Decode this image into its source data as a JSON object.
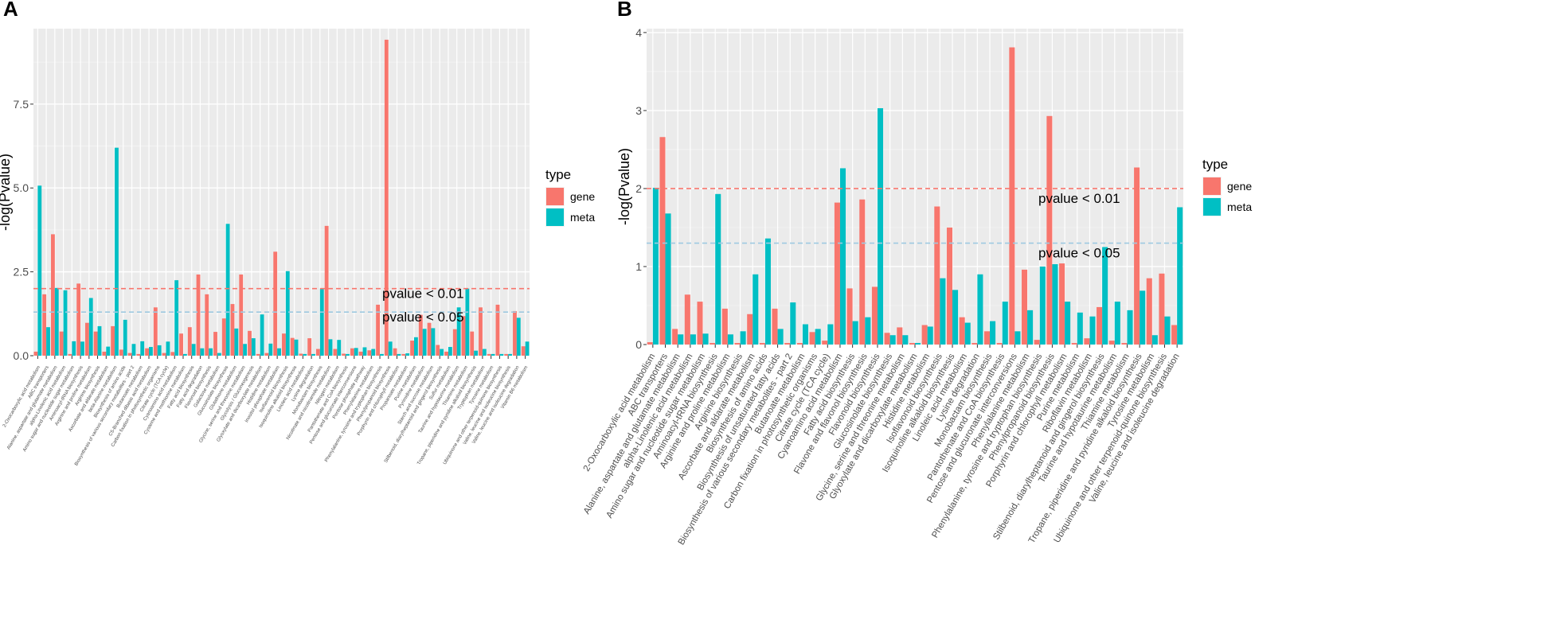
{
  "chart_data": [
    {
      "panel": "A",
      "type": "bar",
      "ylabel": "-log(Pvalue)",
      "xlabel": "",
      "ylim": [
        0,
        9.75
      ],
      "yticks": [
        "0.0",
        "2.5",
        "5.0",
        "7.5"
      ],
      "ytick_values": [
        0,
        2.5,
        5,
        7.5
      ],
      "legend": {
        "title": "type",
        "position": "right",
        "entries": [
          "gene",
          "meta"
        ]
      },
      "thresholds": [
        {
          "label": "pvalue < 0.01",
          "value": 2.0,
          "color": "#F8766D"
        },
        {
          "label": "pvalue < 0.05",
          "value": 1.3,
          "color": "#9ECAE1"
        }
      ],
      "categories": [
        "2-Oxocarboxylic acid metabolism",
        "ABC transporters",
        "Alanine, aspartate and glutamate metabolism",
        "alpha-Linolenic acid metabolism",
        "Amino sugar and nucleotide sugar metabolism",
        "Aminoacyl-tRNA biosynthesis",
        "Arginine and proline metabolism",
        "Arginine biosynthesis",
        "Ascorbate and aldarate metabolism",
        "beta-Alanine metabolism",
        "Biosynthesis of amino acids",
        "Biosynthesis of various secondary metabolites - part 2",
        "Butanoate metabolism",
        "C5-Branched dibasic acid metabolism",
        "Carbon fixation in photosynthetic organisms",
        "Citrate cycle (TCA cycle)",
        "Cyanoamino acid metabolism",
        "Cysteine and methionine metabolism",
        "Fatty acid biosynthesis",
        "Fatty acid degradation",
        "Flavonoid biosynthesis",
        "Galactose metabolism",
        "Glucosinolate biosynthesis",
        "Glutathione metabolism",
        "Glycine, serine and threonine metabolism",
        "Glycolysis / Gluconeogenesis",
        "Glyoxylate and dicarboxylate metabolism",
        "Histidine metabolism",
        "Inositol phosphate metabolism",
        "Isoflavonoid biosynthesis",
        "Isoquinoline alkaloid biosynthesis",
        "Linoleic acid metabolism",
        "Lysine degradation",
        "Monobactam biosynthesis",
        "Nicotinate and nicotinamide metabolism",
        "Nitrogen metabolism",
        "Pantothenate and CoA biosynthesis",
        "Pentose and glucuronate interconversions",
        "Pentose phosphate pathway",
        "Phenylalanine metabolism",
        "Phenylalanine, tyrosine and tryptophan biosynthesis",
        "Phenylpropanoid biosynthesis",
        "Porphyrin and chlorophyll metabolism",
        "Propanoate metabolism",
        "Purine metabolism",
        "Pyrimidine metabolism",
        "Starch and sucrose metabolism",
        "Stilbenoid, diarylheptanoid and gingerol biosynthesis",
        "Sulfur metabolism",
        "Taurine and hypotaurine metabolism",
        "Thiamine metabolism",
        "Tropane, piperidine and pyridine alkaloid biosynthesis",
        "Tryptophan metabolism",
        "Tyrosine metabolism",
        "Ubiquinone and other terpenoid-quinone biosynthesis",
        "Valine, leucine and isoleucine biosynthesis",
        "Valine, leucine and isoleucine degradation",
        "Vitamin B6 metabolism"
      ],
      "series": [
        {
          "name": "gene",
          "color": "#F8766D",
          "values": [
            0.12,
            1.83,
            3.62,
            0.72,
            0.05,
            2.15,
            0.98,
            0.72,
            0.12,
            0.88,
            0.18,
            0.08,
            0.05,
            0.22,
            1.44,
            0.08,
            0.11,
            0.66,
            0.85,
            2.42,
            1.83,
            0.71,
            1.11,
            1.54,
            2.42,
            0.74,
            0.05,
            0.08,
            3.1,
            0.66,
            0.53,
            0.06,
            0.52,
            0.2,
            3.87,
            0.2,
            0.06,
            0.22,
            0.12,
            0.16,
            1.52,
            9.42,
            0.22,
            0.05,
            0.45,
            1.22,
            0.98,
            0.32,
            0.12,
            0.79,
            1.18,
            0.72,
            1.44,
            0.05,
            1.52,
            0.05,
            1.33,
            0.28
          ]
        },
        {
          "name": "meta",
          "color": "#00BFC4",
          "values": [
            5.07,
            0.85,
            2.02,
            1.95,
            0.43,
            0.42,
            1.72,
            0.88,
            0.27,
            6.2,
            1.07,
            0.35,
            0.43,
            0.26,
            0.31,
            0.42,
            2.25,
            0.05,
            0.35,
            0.22,
            0.22,
            0.08,
            3.93,
            0.81,
            0.35,
            0.52,
            1.23,
            0.36,
            0.22,
            2.52,
            0.48,
            0.05,
            0.05,
            2.0,
            0.49,
            0.47,
            0.05,
            0.23,
            0.25,
            0.2,
            0.05,
            0.42,
            0.05,
            0.07,
            0.55,
            0.8,
            0.82,
            0.2,
            0.26,
            1.44,
            2.0,
            0.15,
            0.2,
            0.05,
            0.05,
            0.05,
            1.13,
            0.42
          ]
        }
      ]
    },
    {
      "panel": "B",
      "type": "bar",
      "ylabel": "-log(Pvalue)",
      "xlabel": "",
      "ylim": [
        0,
        4.05
      ],
      "yticks": [
        "0",
        "1",
        "2",
        "3",
        "4"
      ],
      "ytick_values": [
        0,
        1,
        2,
        3,
        4
      ],
      "legend": {
        "title": "type",
        "position": "right",
        "entries": [
          "gene",
          "meta"
        ]
      },
      "thresholds": [
        {
          "label": "pvalue < 0.01",
          "value": 2.0,
          "color": "#F8766D"
        },
        {
          "label": "pvalue < 0.05",
          "value": 1.3,
          "color": "#9ECAE1"
        }
      ],
      "categories": [
        "2-Oxocarboxylic acid metabolism",
        "ABC transporters",
        "Alanine, aspartate and glutamate metabolism",
        "alpha-Linolenic acid metabolism",
        "Amino sugar and nucleotide sugar metabolism",
        "Aminoacyl-tRNA biosynthesis",
        "Arginine and proline metabolism",
        "Arginine biosynthesis",
        "Ascorbate and aldarate metabolism",
        "Biosynthesis of amino acids",
        "Biosynthesis of unsaturated fatty acids",
        "Biosynthesis of various secondary metabolites - part 2",
        "Butanoate metabolism",
        "Carbon fixation in photosynthetic organisms",
        "Citrate cycle (TCA cycle)",
        "Cyanoamino acid metabolism",
        "Fatty acid biosynthesis",
        "Flavone and flavonol biosynthesis",
        "Flavonoid biosynthesis",
        "Glucosinolate biosynthesis",
        "Glycine, serine and threonine metabolism",
        "Glyoxylate and dicarboxylate metabolism",
        "Histidine metabolism",
        "Isoflavonoid biosynthesis",
        "Isoquinoline alkaloid biosynthesis",
        "Linoleic acid metabolism",
        "Lysine degradation",
        "Monobactam biosynthesis",
        "Pantothenate and CoA biosynthesis",
        "Pentose and glucuronate interconversions",
        "Phenylalanine metabolism",
        "Phenylalanine, tyrosine and tryptophan biosynthesis",
        "Phenylpropanoid biosynthesis",
        "Porphyrin and chlorophyll metabolism",
        "Purine metabolism",
        "Riboflavin metabolism",
        "Stilbenoid, diarylheptanoid and gingerol biosynthesis",
        "Taurine and hypotaurine metabolism",
        "Thiamine metabolism",
        "Tropane, piperidine and pyridine alkaloid biosynthesis",
        "Tyrosine metabolism",
        "Ubiquinone and other terpenoid-quinone biosynthesis",
        "Valine, leucine and isoleucine degradation"
      ],
      "series": [
        {
          "name": "gene",
          "color": "#F8766D",
          "values": [
            0.03,
            2.66,
            0.2,
            0.64,
            0.55,
            0.02,
            0.46,
            0.02,
            0.39,
            0.02,
            0.46,
            0.02,
            0.02,
            0.16,
            0.05,
            1.82,
            0.72,
            1.86,
            0.74,
            0.15,
            0.22,
            0.02,
            0.25,
            1.77,
            1.5,
            0.35,
            0.02,
            0.17,
            0.02,
            3.81,
            0.96,
            0.06,
            2.93,
            1.04,
            0.02,
            0.08,
            0.48,
            0.05,
            0.02,
            2.27,
            0.85,
            0.91,
            0.25
          ]
        },
        {
          "name": "meta",
          "color": "#00BFC4",
          "values": [
            2.01,
            1.68,
            0.13,
            0.13,
            0.14,
            1.93,
            0.13,
            0.17,
            0.9,
            1.36,
            0.2,
            0.54,
            0.26,
            0.2,
            0.26,
            2.26,
            0.3,
            0.35,
            3.03,
            0.12,
            0.12,
            0.02,
            0.23,
            0.85,
            0.7,
            0.28,
            0.9,
            0.3,
            0.55,
            0.17,
            0.44,
            1.0,
            1.03,
            0.55,
            0.41,
            0.36,
            1.25,
            0.55,
            0.44,
            0.69,
            0.12,
            0.36,
            1.76
          ]
        }
      ]
    }
  ]
}
